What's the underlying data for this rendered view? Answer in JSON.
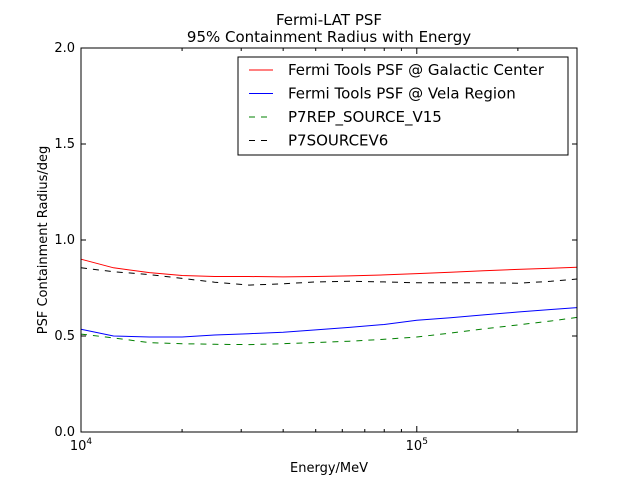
{
  "chart_data": {
    "type": "line",
    "title": "Fermi-LAT PSF",
    "subtitle": "95% Containment Radius with Energy",
    "xlabel": "Energy/MeV",
    "ylabel": "PSF Containment Radius/deg",
    "xscale": "log",
    "xlim": [
      10000,
      300000
    ],
    "ylim": [
      0.0,
      2.0
    ],
    "yticks": [
      "0.0",
      "0.5",
      "1.0",
      "1.5",
      "2.0"
    ],
    "xticks": [
      {
        "value": 10000,
        "base": "10",
        "exp": "4"
      },
      {
        "value": 100000,
        "base": "10",
        "exp": "5"
      }
    ],
    "grid": false,
    "legend_position": "top-right",
    "series": [
      {
        "name": "Fermi Tools PSF @ Galactic Center",
        "color": "#ff0000",
        "dash": "solid",
        "x": [
          10000,
          12500,
          16000,
          20000,
          25000,
          31600,
          40000,
          50000,
          63000,
          80000,
          100000,
          126000,
          158000,
          200000,
          251000,
          300000
        ],
        "y": [
          0.9,
          0.855,
          0.83,
          0.815,
          0.81,
          0.81,
          0.808,
          0.81,
          0.813,
          0.818,
          0.825,
          0.832,
          0.84,
          0.847,
          0.853,
          0.858
        ]
      },
      {
        "name": "Fermi Tools PSF @ Vela Region",
        "color": "#0000ff",
        "dash": "solid",
        "x": [
          10000,
          12500,
          16000,
          20000,
          25000,
          31600,
          40000,
          50000,
          63000,
          80000,
          100000,
          126000,
          158000,
          200000,
          251000,
          300000
        ],
        "y": [
          0.535,
          0.5,
          0.495,
          0.495,
          0.505,
          0.512,
          0.52,
          0.532,
          0.545,
          0.56,
          0.582,
          0.595,
          0.61,
          0.625,
          0.638,
          0.648
        ]
      },
      {
        "name": "P7REP_SOURCE_V15",
        "color": "#008000",
        "dash": "dashed",
        "x": [
          10000,
          12500,
          16000,
          20000,
          25000,
          31600,
          40000,
          50000,
          63000,
          80000,
          100000,
          126000,
          158000,
          200000,
          251000,
          300000
        ],
        "y": [
          0.51,
          0.49,
          0.465,
          0.46,
          0.457,
          0.455,
          0.46,
          0.466,
          0.473,
          0.483,
          0.495,
          0.515,
          0.537,
          0.558,
          0.578,
          0.597
        ]
      },
      {
        "name": "P7SOURCEV6",
        "color": "#000000",
        "dash": "dashed",
        "x": [
          10000,
          12500,
          16000,
          20000,
          25000,
          31600,
          40000,
          50000,
          63000,
          80000,
          100000,
          126000,
          158000,
          200000,
          251000,
          300000
        ],
        "y": [
          0.855,
          0.835,
          0.82,
          0.8,
          0.78,
          0.765,
          0.772,
          0.782,
          0.785,
          0.782,
          0.777,
          0.777,
          0.777,
          0.775,
          0.785,
          0.797
        ]
      }
    ]
  }
}
